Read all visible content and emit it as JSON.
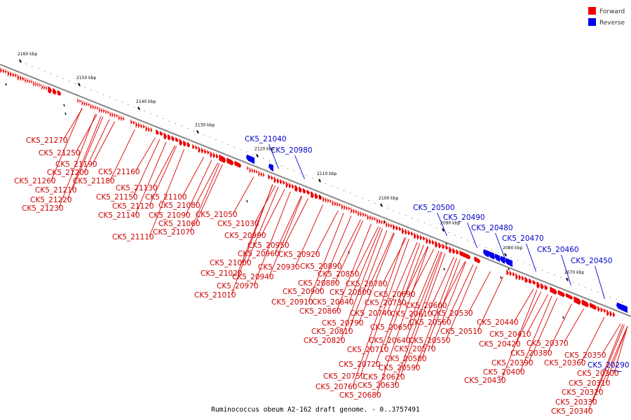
{
  "caption": "Ruminococcus obeum A2-162 draft genome. - 0..3757491",
  "legend": [
    {
      "label": "Forward",
      "color": "#ee0000"
    },
    {
      "label": "Reverse",
      "color": "#0000ee"
    }
  ],
  "colors": {
    "forward": "#ee0000",
    "reverse": "#0000ee",
    "forward_label": "#cc0000",
    "reverse_label": "#0000cc",
    "backbone": "#888888"
  },
  "ticks": [
    {
      "kbp": 2160,
      "label": "2160 kbp"
    },
    {
      "kbp": 2150,
      "label": "2150 kbp"
    },
    {
      "kbp": 2140,
      "label": "2140 kbp"
    },
    {
      "kbp": 2130,
      "label": "2130 kbp"
    },
    {
      "kbp": 2120,
      "label": "2120 kbp"
    },
    {
      "kbp": 2110,
      "label": "2110 kbp"
    },
    {
      "kbp": 2100,
      "label": "2100 kbp"
    },
    {
      "kbp": 2090,
      "label": "2090 kbp"
    },
    {
      "kbp": 2080,
      "label": "2080 kbp"
    },
    {
      "kbp": 2070,
      "label": "2070 kbp"
    }
  ],
  "features": [
    {
      "name": "CK5_21270",
      "strand": "forward"
    },
    {
      "name": "CK5_21250",
      "strand": "forward"
    },
    {
      "name": "CK5_21190",
      "strand": "forward"
    },
    {
      "name": "CK5_21200",
      "strand": "forward"
    },
    {
      "name": "CK5_21260",
      "strand": "forward"
    },
    {
      "name": "CK5_21180",
      "strand": "forward"
    },
    {
      "name": "CK5_21210",
      "strand": "forward"
    },
    {
      "name": "CK5_21220",
      "strand": "forward"
    },
    {
      "name": "CK5_21230",
      "strand": "forward"
    },
    {
      "name": "CK5_21160",
      "strand": "forward"
    },
    {
      "name": "CK5_21130",
      "strand": "forward"
    },
    {
      "name": "CK5_21150",
      "strand": "forward"
    },
    {
      "name": "CK5_21080",
      "strand": "forward"
    },
    {
      "name": "CK5_21100",
      "strand": "forward"
    },
    {
      "name": "CK5_21120",
      "strand": "forward"
    },
    {
      "name": "CK5_21140",
      "strand": "forward"
    },
    {
      "name": "CK5_21090",
      "strand": "forward"
    },
    {
      "name": "CK5_21060",
      "strand": "forward"
    },
    {
      "name": "CK5_21070",
      "strand": "forward"
    },
    {
      "name": "CK5_21110",
      "strand": "forward"
    },
    {
      "name": "CK5_21050",
      "strand": "forward"
    },
    {
      "name": "CK5_21030",
      "strand": "forward"
    },
    {
      "name": "CK5_20990",
      "strand": "forward"
    },
    {
      "name": "CK5_20950",
      "strand": "forward"
    },
    {
      "name": "CK5_20960",
      "strand": "forward"
    },
    {
      "name": "CK5_20920",
      "strand": "forward"
    },
    {
      "name": "CK5_21000",
      "strand": "forward"
    },
    {
      "name": "CK5_20930",
      "strand": "forward"
    },
    {
      "name": "CK5_21020",
      "strand": "forward"
    },
    {
      "name": "CK5_20940",
      "strand": "forward"
    },
    {
      "name": "CK5_20970",
      "strand": "forward"
    },
    {
      "name": "CK5_21010",
      "strand": "forward"
    },
    {
      "name": "CK5_20890",
      "strand": "forward"
    },
    {
      "name": "CK5_20850",
      "strand": "forward"
    },
    {
      "name": "CK5_20880",
      "strand": "forward"
    },
    {
      "name": "CK5_20780",
      "strand": "forward"
    },
    {
      "name": "CK5_20900",
      "strand": "forward"
    },
    {
      "name": "CK5_20800",
      "strand": "forward"
    },
    {
      "name": "CK5_20690",
      "strand": "forward"
    },
    {
      "name": "CK5_20910",
      "strand": "forward"
    },
    {
      "name": "CK5_20840",
      "strand": "forward"
    },
    {
      "name": "CK5_20730",
      "strand": "forward"
    },
    {
      "name": "CK5_20600",
      "strand": "forward"
    },
    {
      "name": "CK5_20860",
      "strand": "forward"
    },
    {
      "name": "CK5_20740",
      "strand": "forward"
    },
    {
      "name": "CK5_20610",
      "strand": "forward"
    },
    {
      "name": "CK5_20530",
      "strand": "forward"
    },
    {
      "name": "CK5_20790",
      "strand": "forward"
    },
    {
      "name": "CK5_20560",
      "strand": "forward"
    },
    {
      "name": "CK5_20650",
      "strand": "forward"
    },
    {
      "name": "CK5_20810",
      "strand": "forward"
    },
    {
      "name": "CK5_20510",
      "strand": "forward"
    },
    {
      "name": "CK5_20640",
      "strand": "forward"
    },
    {
      "name": "CK5_20550",
      "strand": "forward"
    },
    {
      "name": "CK5_20820",
      "strand": "forward"
    },
    {
      "name": "CK5_20570",
      "strand": "forward"
    },
    {
      "name": "CK5_20710",
      "strand": "forward"
    },
    {
      "name": "CK5_20580",
      "strand": "forward"
    },
    {
      "name": "CK5_20720",
      "strand": "forward"
    },
    {
      "name": "CK5_20590",
      "strand": "forward"
    },
    {
      "name": "CK5_20750",
      "strand": "forward"
    },
    {
      "name": "CK5_20620",
      "strand": "forward"
    },
    {
      "name": "CK5_20760",
      "strand": "forward"
    },
    {
      "name": "CK5_20630",
      "strand": "forward"
    },
    {
      "name": "CK5_20680",
      "strand": "forward"
    },
    {
      "name": "CK5_20440",
      "strand": "forward"
    },
    {
      "name": "CK5_20410",
      "strand": "forward"
    },
    {
      "name": "CK5_20420",
      "strand": "forward"
    },
    {
      "name": "CK5_20370",
      "strand": "forward"
    },
    {
      "name": "CK5_20380",
      "strand": "forward"
    },
    {
      "name": "CK5_20390",
      "strand": "forward"
    },
    {
      "name": "CK5_20350",
      "strand": "forward"
    },
    {
      "name": "CK5_20360",
      "strand": "forward"
    },
    {
      "name": "CK5_20400",
      "strand": "forward"
    },
    {
      "name": "CK5_20300",
      "strand": "forward"
    },
    {
      "name": "CK5_20430",
      "strand": "forward"
    },
    {
      "name": "CK5_20310",
      "strand": "forward"
    },
    {
      "name": "CK5_20320",
      "strand": "forward"
    },
    {
      "name": "CK5_20330",
      "strand": "forward"
    },
    {
      "name": "CK5_20340",
      "strand": "forward"
    },
    {
      "name": "CK5_21040",
      "strand": "reverse"
    },
    {
      "name": "CK5_20980",
      "strand": "reverse"
    },
    {
      "name": "CK5_20500",
      "strand": "reverse"
    },
    {
      "name": "CK5_20490",
      "strand": "reverse"
    },
    {
      "name": "CK5_20480",
      "strand": "reverse"
    },
    {
      "name": "CK5_20470",
      "strand": "reverse"
    },
    {
      "name": "CK5_20460",
      "strand": "reverse"
    },
    {
      "name": "CK5_20450",
      "strand": "reverse"
    },
    {
      "name": "CK5_20290",
      "strand": "reverse"
    }
  ]
}
